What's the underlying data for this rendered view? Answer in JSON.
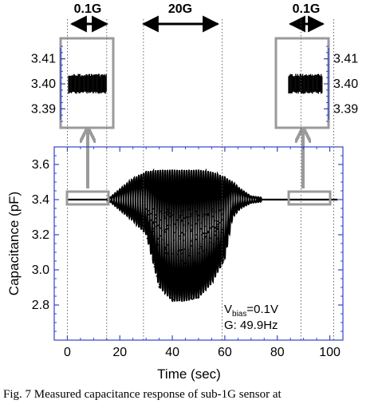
{
  "caption": "Fig. 7 Measured capacitance response of sub-1G sensor at",
  "chart_data": [
    {
      "type": "scatter",
      "role": "main",
      "xlabel": "Time (sec)",
      "ylabel": "Capacitance (pF)",
      "xlim": [
        -5,
        105
      ],
      "ylim": [
        2.6,
        3.7
      ],
      "xticks": [
        0,
        20,
        40,
        60,
        80,
        100
      ],
      "yticks": [
        2.8,
        3.0,
        3.2,
        3.4,
        3.6
      ],
      "xtick_labels": [
        "0",
        "20",
        "40",
        "60",
        "80",
        "100"
      ],
      "ytick_labels": [
        "2.8",
        "3.0",
        "3.2",
        "3.4",
        "3.6"
      ],
      "grid": false,
      "baseline": 3.4,
      "envelope": {
        "time": [
          0,
          14,
          16,
          20,
          25,
          30,
          35,
          40,
          45,
          50,
          55,
          60,
          63,
          66,
          70,
          75,
          80,
          90,
          104
        ],
        "upper": [
          3.4,
          3.4,
          3.41,
          3.46,
          3.52,
          3.56,
          3.57,
          3.57,
          3.57,
          3.57,
          3.56,
          3.53,
          3.5,
          3.46,
          3.42,
          3.41,
          3.4,
          3.4,
          3.4
        ],
        "lower": [
          3.4,
          3.4,
          3.39,
          3.34,
          3.28,
          3.2,
          2.9,
          2.82,
          2.82,
          2.84,
          2.92,
          3.06,
          3.3,
          3.35,
          3.38,
          3.39,
          3.4,
          3.4,
          3.4
        ]
      },
      "oscillation_frequency_note": "G: 49.9Hz",
      "vbias_main": "V",
      "vbias_sub": "bias",
      "vbias_value": "=0.1V",
      "dotted_markers_time": [
        0,
        15,
        29,
        59,
        89,
        101.5
      ]
    },
    {
      "type": "scatter",
      "role": "inset-left",
      "yticks": [
        3.39,
        3.4,
        3.41
      ],
      "ytick_labels": [
        "3.39",
        "3.40",
        "3.41"
      ],
      "ylim": [
        3.385,
        3.415
      ],
      "band": [
        3.396,
        3.404
      ]
    },
    {
      "type": "scatter",
      "role": "inset-right",
      "yticks": [
        3.39,
        3.4,
        3.41
      ],
      "ytick_labels": [
        "3.39",
        "3.40",
        "3.41"
      ],
      "ylim": [
        3.385,
        3.415
      ],
      "band": [
        3.396,
        3.404
      ]
    }
  ],
  "annotations": {
    "left_span": "0.1G",
    "middle_span": "20G",
    "right_span": "0.1G"
  },
  "colors": {
    "frame_gray": "#9a9a9a",
    "axis_blue": "#3344cc",
    "data": "#000000",
    "arrow_gray": "#9a9a9a"
  }
}
